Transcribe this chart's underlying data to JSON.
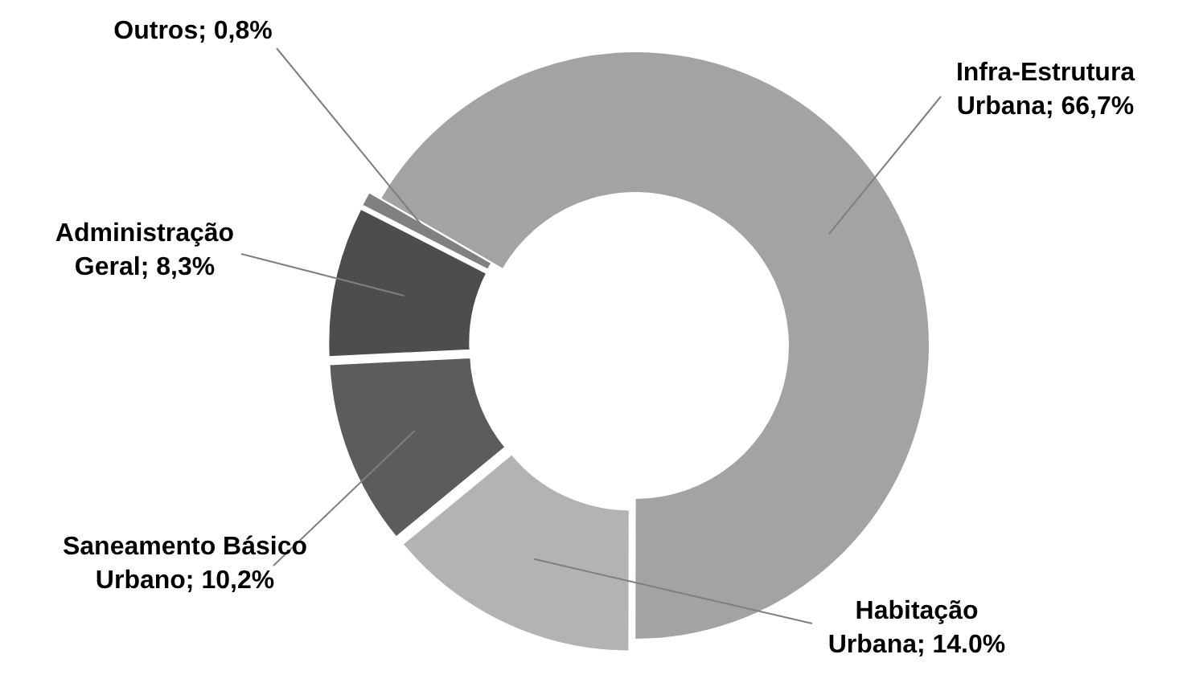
{
  "chart_data": {
    "type": "donut",
    "categories": [
      "Infra-Estrutura Urbana",
      "Habitação Urbana",
      "Saneamento Básico Urbano",
      "Administração Geral",
      "Outros"
    ],
    "values": [
      66.7,
      14.0,
      10.2,
      8.3,
      0.8
    ],
    "value_labels": [
      "66,7%",
      "14.0%",
      "10,2%",
      "8,3%",
      "0,8%"
    ],
    "colors": [
      "#a3a3a3",
      "#b3b3b3",
      "#5c5c5c",
      "#4d4d4d",
      "#808080"
    ]
  }
}
